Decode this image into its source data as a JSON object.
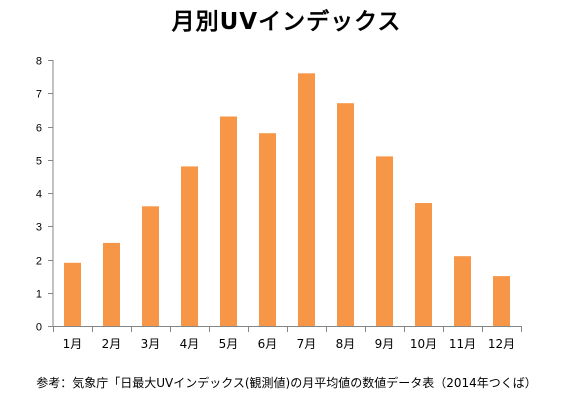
{
  "chart_data": {
    "type": "bar",
    "title": "月別UVインデックス",
    "categories": [
      "1月",
      "2月",
      "3月",
      "4月",
      "5月",
      "6月",
      "7月",
      "8月",
      "9月",
      "10月",
      "11月",
      "12月"
    ],
    "values": [
      1.9,
      2.5,
      3.6,
      4.8,
      6.3,
      5.8,
      7.6,
      6.7,
      5.1,
      3.7,
      2.1,
      1.5
    ],
    "ylim": [
      0,
      8
    ],
    "yticks": [
      0,
      1,
      2,
      3,
      4,
      5,
      6,
      7,
      8
    ],
    "xlabel": "",
    "ylabel": "",
    "grid": false,
    "bar_color": "#F79646",
    "axis_color": "#868686",
    "note": "参考：気象庁「日最大UVインデックス(観測値)の月平均値の数値データ表（2014年つくば）"
  }
}
